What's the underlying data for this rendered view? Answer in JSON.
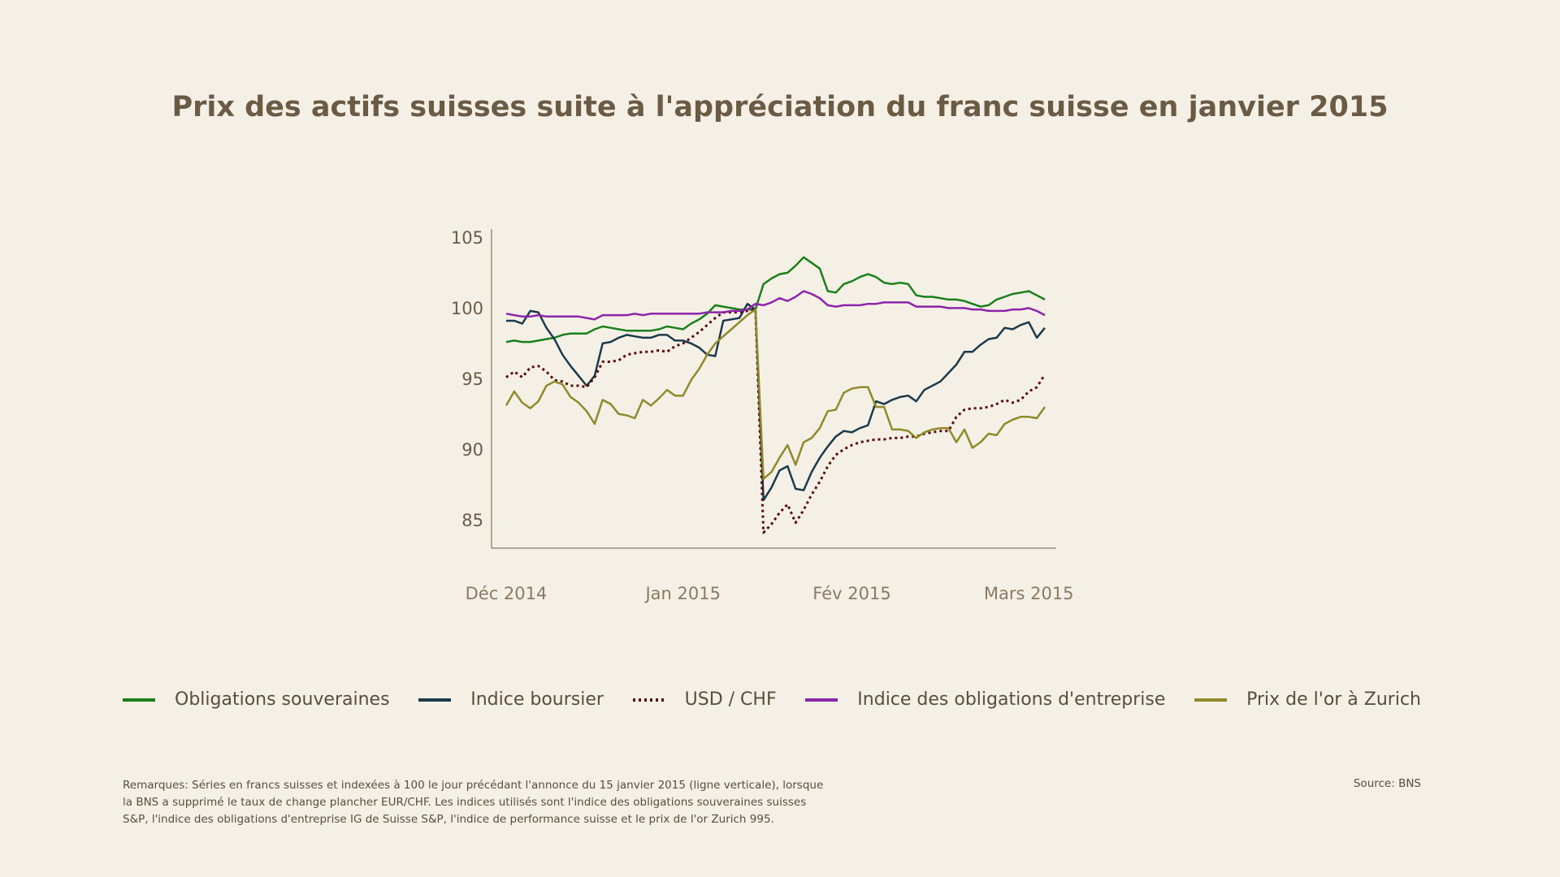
{
  "chart_data": {
    "type": "line",
    "title": "Prix des actifs suisses suite à l'appréciation du franc suisse en janvier 2015",
    "categories": [
      "Déc 2014",
      null,
      null,
      null,
      null,
      null,
      null,
      null,
      null,
      null,
      null,
      null,
      null,
      null,
      null,
      null,
      null,
      null,
      null,
      null,
      null,
      null,
      "Jan 2015",
      null,
      null,
      null,
      null,
      null,
      null,
      null,
      null,
      null,
      null,
      null,
      null,
      null,
      null,
      null,
      null,
      null,
      null,
      null,
      null,
      "Fév 2015",
      null,
      null,
      null,
      null,
      null,
      null,
      null,
      null,
      null,
      null,
      null,
      null,
      null,
      null,
      null,
      null,
      null,
      null,
      null,
      null,
      null,
      "Mars 2015",
      null,
      null
    ],
    "ylim": [
      83.1,
      105.7
    ],
    "yticks": [
      85,
      90,
      95,
      100,
      105
    ],
    "grid": false,
    "series": [
      {
        "name": "Obligations souveraines",
        "color": "#1a7f1a",
        "style": "solid",
        "values": [
          97.7,
          97.8,
          97.7,
          97.7,
          97.8,
          97.9,
          98.0,
          98.2,
          98.3,
          98.3,
          98.3,
          98.6,
          98.8,
          98.7,
          98.6,
          98.5,
          98.5,
          98.5,
          98.5,
          98.6,
          98.8,
          98.7,
          98.6,
          99.0,
          99.3,
          99.7,
          100.3,
          100.2,
          100.1,
          100.0,
          100.0,
          100.0,
          101.8,
          102.2,
          102.5,
          102.6,
          103.1,
          103.7,
          103.3,
          102.9,
          101.3,
          101.2,
          101.8,
          102.0,
          102.3,
          102.5,
          102.3,
          101.9,
          101.8,
          101.9,
          101.8,
          101.0,
          100.9,
          100.9,
          100.8,
          100.7,
          100.7,
          100.6,
          100.4,
          100.2,
          100.3,
          100.7,
          100.9,
          101.1,
          101.2,
          101.3,
          101.0,
          100.7
        ]
      },
      {
        "name": "Indice boursier",
        "color": "#1b3a4b",
        "style": "solid",
        "values": [
          99.2,
          99.2,
          99.0,
          99.9,
          99.8,
          98.7,
          97.9,
          96.8,
          96.0,
          95.3,
          94.6,
          95.3,
          97.6,
          97.7,
          98.0,
          98.2,
          98.1,
          98.0,
          98.0,
          98.2,
          98.2,
          97.8,
          97.8,
          97.6,
          97.3,
          96.8,
          96.7,
          99.2,
          99.3,
          99.4,
          100.4,
          100.0,
          86.5,
          87.4,
          88.6,
          88.9,
          87.3,
          87.2,
          88.5,
          89.5,
          90.3,
          91.0,
          91.4,
          91.3,
          91.6,
          91.8,
          93.5,
          93.3,
          93.6,
          93.8,
          93.9,
          93.5,
          94.3,
          94.6,
          94.9,
          95.5,
          96.1,
          97.0,
          97.0,
          97.5,
          97.9,
          98.0,
          98.7,
          98.6,
          98.9,
          99.1,
          98.0,
          98.7
        ]
      },
      {
        "name": "USD / CHF",
        "color": "#5a0a0a",
        "style": "dotted",
        "values": [
          95.2,
          95.6,
          95.2,
          95.9,
          96.0,
          95.6,
          95.0,
          94.9,
          94.6,
          94.6,
          94.5,
          95.2,
          96.3,
          96.3,
          96.4,
          96.8,
          96.9,
          97.0,
          97.0,
          97.1,
          97.0,
          97.4,
          97.6,
          98.0,
          98.4,
          98.9,
          99.4,
          99.8,
          99.8,
          99.8,
          99.9,
          100.0,
          84.2,
          84.8,
          85.6,
          86.2,
          84.9,
          85.8,
          86.9,
          87.8,
          88.9,
          89.7,
          90.1,
          90.4,
          90.6,
          90.7,
          90.8,
          90.8,
          90.9,
          90.9,
          91.0,
          91.0,
          91.2,
          91.3,
          91.4,
          91.4,
          92.4,
          92.9,
          93.0,
          93.0,
          93.1,
          93.3,
          93.6,
          93.4,
          93.6,
          94.2,
          94.5,
          95.4
        ]
      },
      {
        "name": "Indice des obligations d'entreprise",
        "color": "#8e24aa",
        "style": "solid",
        "values": [
          99.7,
          99.6,
          99.5,
          99.5,
          99.6,
          99.5,
          99.5,
          99.5,
          99.5,
          99.5,
          99.4,
          99.3,
          99.6,
          99.6,
          99.6,
          99.6,
          99.7,
          99.6,
          99.7,
          99.7,
          99.7,
          99.7,
          99.7,
          99.7,
          99.7,
          99.8,
          99.8,
          99.8,
          99.9,
          99.9,
          100.0,
          100.4,
          100.3,
          100.5,
          100.8,
          100.6,
          100.9,
          101.3,
          101.1,
          100.8,
          100.3,
          100.2,
          100.3,
          100.3,
          100.3,
          100.4,
          100.4,
          100.5,
          100.5,
          100.5,
          100.5,
          100.2,
          100.2,
          100.2,
          100.2,
          100.1,
          100.1,
          100.1,
          100.0,
          100.0,
          99.9,
          99.9,
          99.9,
          100.0,
          100.0,
          100.1,
          99.9,
          99.6
        ]
      },
      {
        "name": "Prix de l'or à Zurich",
        "color": "#8f8a2a",
        "style": "solid",
        "values": [
          93.2,
          94.2,
          93.4,
          93.0,
          93.5,
          94.6,
          94.9,
          94.7,
          93.8,
          93.4,
          92.8,
          91.9,
          93.6,
          93.3,
          92.6,
          92.5,
          92.3,
          93.6,
          93.2,
          93.7,
          94.3,
          93.9,
          93.9,
          95.0,
          95.8,
          96.8,
          97.6,
          98.1,
          98.6,
          99.1,
          99.6,
          100.0,
          88.0,
          88.5,
          89.5,
          90.4,
          89.0,
          90.6,
          90.9,
          91.6,
          92.8,
          92.9,
          94.1,
          94.4,
          94.5,
          94.5,
          93.1,
          93.1,
          91.5,
          91.5,
          91.4,
          90.9,
          91.3,
          91.5,
          91.6,
          91.6,
          90.6,
          91.5,
          90.2,
          90.6,
          91.2,
          91.1,
          91.9,
          92.2,
          92.4,
          92.4,
          92.3,
          93.1
        ]
      }
    ],
    "note": "Remarques: Séries en francs suisses et indexées à 100 le jour précédant l'annonce du 15 janvier 2015 (ligne verticale), lorsque la BNS a supprimé le taux de change plancher EUR/CHF. Les indices utilisés sont l'indice des obligations souveraines suisses S&P, l'indice des obligations d'entreprise IG de Suisse S&P, l'indice de performance suisse et le prix de l'or Zurich 995.",
    "source": "Source: BNS"
  }
}
